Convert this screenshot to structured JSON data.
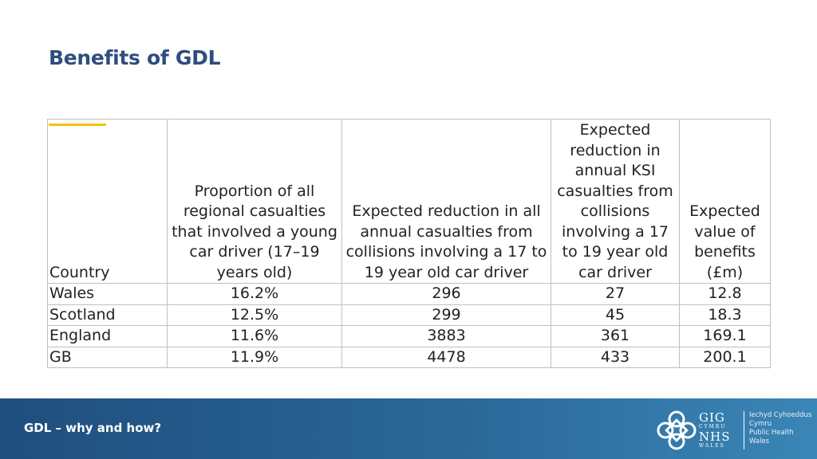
{
  "slide": {
    "title": "Benefits of GDL"
  },
  "table": {
    "headers": [
      "Country",
      "Proportion of all regional casualties that involved a young car driver (17–19 years old)",
      "Expected reduction in all annual casualties from collisions involving a 17 to 19 year old car driver",
      "Expected reduction in annual KSI casualties from collisions involving a 17 to 19 year old car driver",
      "Expected value of benefits (£m)"
    ],
    "rows": [
      [
        "Wales",
        "16.2%",
        "296",
        "27",
        "12.8"
      ],
      [
        "Scotland",
        "12.5%",
        "299",
        "45",
        "18.3"
      ],
      [
        "England",
        "11.6%",
        "3883",
        "361",
        "169.1"
      ],
      [
        "GB",
        "11.9%",
        "4478",
        "433",
        "200.1"
      ]
    ]
  },
  "footer": {
    "text": "GDL – why and how?",
    "logo": {
      "line1": "GIG",
      "line2": "CYMRU",
      "line3": "NHS",
      "line4": "WALES",
      "org_line1": "Iechyd Cyhoeddus",
      "org_line2": "Cymru",
      "org_line3": "Public Health",
      "org_line4": "Wales"
    }
  },
  "colors": {
    "title": "#2f4d7e",
    "accent": "#f2c200",
    "footer_start": "#1f4e7e",
    "footer_end": "#3a86b6"
  }
}
